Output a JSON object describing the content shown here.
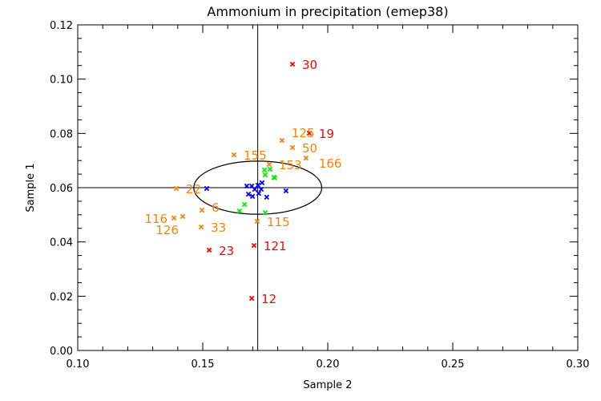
{
  "chart_data": {
    "type": "scatter",
    "title": "Ammonium in precipitation (emep38)",
    "xlabel": "Sample 2",
    "ylabel": "Sample 1",
    "xlim": [
      0.1,
      0.3
    ],
    "ylim": [
      0.0,
      0.12
    ],
    "xticks": [
      "0.10",
      "0.15",
      "0.20",
      "0.25",
      "0.30"
    ],
    "yticks": [
      "0.00",
      "0.02",
      "0.04",
      "0.06",
      "0.08",
      "0.10",
      "0.12"
    ],
    "grid": false,
    "reference_lines": {
      "x": 0.172,
      "y": 0.06
    },
    "ellipse": {
      "cx": 0.172,
      "cy": 0.06,
      "rx": 0.0256,
      "ry": 0.0098
    },
    "colors": {
      "red": "#ff0000",
      "orange": "#ff8000",
      "blue": "#0000ff",
      "green": "#00ee00",
      "axes": "#000000"
    },
    "series": [
      {
        "color": "red",
        "points": [
          {
            "x": 0.1859,
            "y": 0.1055,
            "label": "30"
          },
          {
            "x": 0.1926,
            "y": 0.0801,
            "label": "19"
          },
          {
            "x": 0.1696,
            "y": 0.0192,
            "label": "12"
          },
          {
            "x": 0.1526,
            "y": 0.037,
            "label": "23"
          },
          {
            "x": 0.1705,
            "y": 0.0387,
            "label": "121"
          }
        ]
      },
      {
        "color": "orange",
        "points": [
          {
            "x": 0.1817,
            "y": 0.0774,
            "label": "125"
          },
          {
            "x": 0.1859,
            "y": 0.0748,
            "label": "50"
          },
          {
            "x": 0.1913,
            "y": 0.0709,
            "label": "166"
          },
          {
            "x": 0.1625,
            "y": 0.0721,
            "label": "155"
          },
          {
            "x": 0.1766,
            "y": 0.0686,
            "label": "153"
          },
          {
            "x": 0.1394,
            "y": 0.0597,
            "label": "22"
          },
          {
            "x": 0.1718,
            "y": 0.0476,
            "label": "115"
          },
          {
            "x": 0.1385,
            "y": 0.0488,
            "label": "116"
          },
          {
            "x": 0.142,
            "y": 0.0494,
            "label": "126"
          },
          {
            "x": 0.1497,
            "y": 0.0517,
            "label": "6"
          },
          {
            "x": 0.1494,
            "y": 0.0455,
            "label": "33"
          }
        ]
      },
      {
        "color": "blue",
        "points": [
          {
            "x": 0.1516,
            "y": 0.0597
          },
          {
            "x": 0.1676,
            "y": 0.0606
          },
          {
            "x": 0.1696,
            "y": 0.0606
          },
          {
            "x": 0.1721,
            "y": 0.0609
          },
          {
            "x": 0.1737,
            "y": 0.0618
          },
          {
            "x": 0.1683,
            "y": 0.0576
          },
          {
            "x": 0.1699,
            "y": 0.0568
          },
          {
            "x": 0.1724,
            "y": 0.0579
          },
          {
            "x": 0.1756,
            "y": 0.0565
          },
          {
            "x": 0.1833,
            "y": 0.0588
          },
          {
            "x": 0.1708,
            "y": 0.0594
          },
          {
            "x": 0.1734,
            "y": 0.0594
          }
        ]
      },
      {
        "color": "green",
        "points": [
          {
            "x": 0.1747,
            "y": 0.0665
          },
          {
            "x": 0.1769,
            "y": 0.0668
          },
          {
            "x": 0.175,
            "y": 0.0647
          },
          {
            "x": 0.1785,
            "y": 0.0638
          },
          {
            "x": 0.1788,
            "y": 0.0636
          },
          {
            "x": 0.1667,
            "y": 0.0538
          },
          {
            "x": 0.1647,
            "y": 0.0514
          },
          {
            "x": 0.175,
            "y": 0.0508
          }
        ]
      }
    ]
  }
}
